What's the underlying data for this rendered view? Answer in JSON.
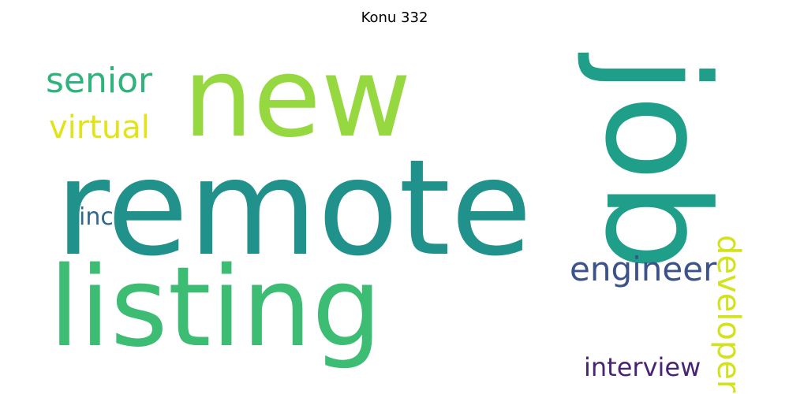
{
  "title": "Konu 332",
  "words": [
    {
      "text": "remote",
      "color": "#21918c",
      "rotated": false
    },
    {
      "text": "new",
      "color": "#95d840",
      "rotated": false
    },
    {
      "text": "listing",
      "color": "#3dbc74",
      "rotated": false
    },
    {
      "text": "job",
      "color": "#1f9e89",
      "rotated": true
    },
    {
      "text": "senior",
      "color": "#2eb37c",
      "rotated": false
    },
    {
      "text": "virtual",
      "color": "#e2e418",
      "rotated": false
    },
    {
      "text": "developer",
      "color": "#d2e21b",
      "rotated": true
    },
    {
      "text": "inc",
      "color": "#31688e",
      "rotated": false
    },
    {
      "text": "engineer",
      "color": "#3b528b",
      "rotated": false
    },
    {
      "text": "interview",
      "color": "#482475",
      "rotated": false
    }
  ]
}
